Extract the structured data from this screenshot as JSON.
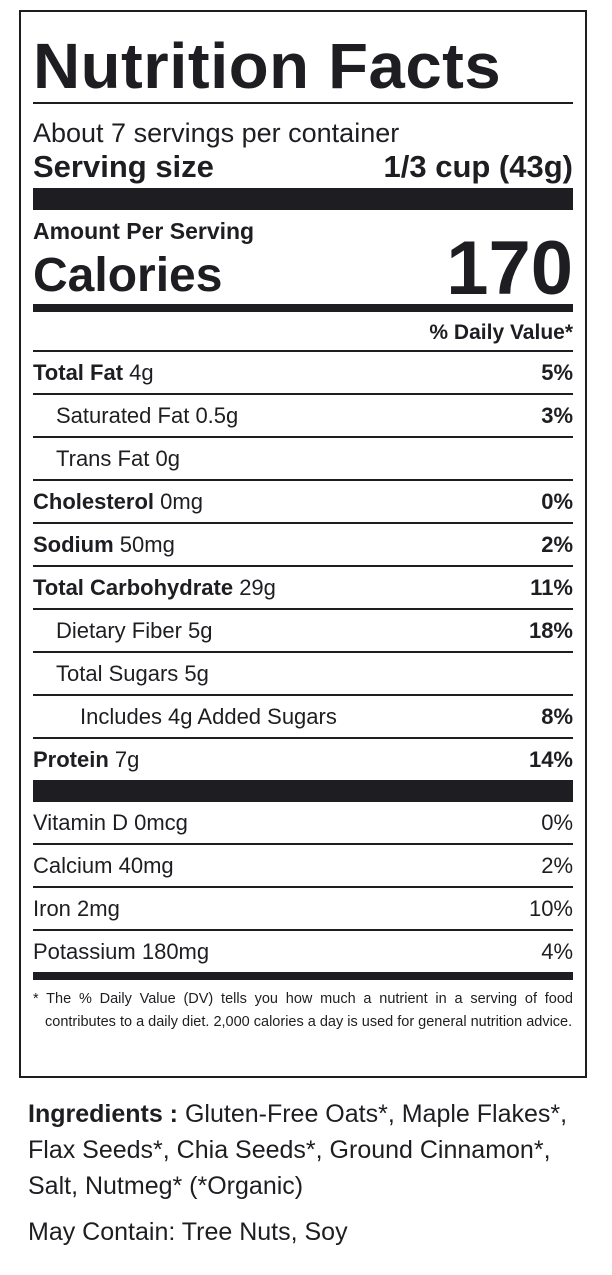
{
  "title": "Nutrition Facts",
  "servings_per_container": "About 7 servings per container",
  "serving_size_label": "Serving size",
  "serving_size_value": "1/3 cup (43g)",
  "amount_per_serving": "Amount Per Serving",
  "calories_label": "Calories",
  "calories_value": "170",
  "daily_value_header": "% Daily Value*",
  "nutrients": [
    {
      "name": "Total Fat",
      "amount": "4g",
      "dv": "5%"
    },
    {
      "name": "Saturated Fat",
      "amount": "0.5g",
      "dv": "3%"
    },
    {
      "name": "Trans Fat",
      "amount": "0g",
      "dv": ""
    },
    {
      "name": "Cholesterol",
      "amount": "0mg",
      "dv": "0%"
    },
    {
      "name": "Sodium",
      "amount": "50mg",
      "dv": "2%"
    },
    {
      "name": "Total Carbohydrate",
      "amount": "29g",
      "dv": "11%"
    },
    {
      "name": "Dietary Fiber",
      "amount": "5g",
      "dv": "18%"
    },
    {
      "name": "Total Sugars",
      "amount": "5g",
      "dv": ""
    },
    {
      "name": "Includes 4g Added Sugars",
      "amount": "",
      "dv": "8%"
    },
    {
      "name": "Protein",
      "amount": "7g",
      "dv": "14%"
    }
  ],
  "vitamins": [
    {
      "name": "Vitamin D",
      "amount": "0mcg",
      "dv": "0%"
    },
    {
      "name": "Calcium",
      "amount": "40mg",
      "dv": "2%"
    },
    {
      "name": "Iron",
      "amount": "2mg",
      "dv": "10%"
    },
    {
      "name": "Potassium",
      "amount": "180mg",
      "dv": "4%"
    }
  ],
  "footnote": "* The % Daily Value (DV) tells you how much a nutrient in a serving of food contributes to a daily diet. 2,000 calories a day is used for general nutrition advice.",
  "ingredients_label": "Ingredients :",
  "ingredients_text": "Gluten-Free Oats*, Maple Flakes*, Flax Seeds*, Chia Seeds*, Ground Cinnamon*, Salt, Nutmeg* (*Organic)",
  "allergens": "May Contain: Tree Nuts, Soy"
}
